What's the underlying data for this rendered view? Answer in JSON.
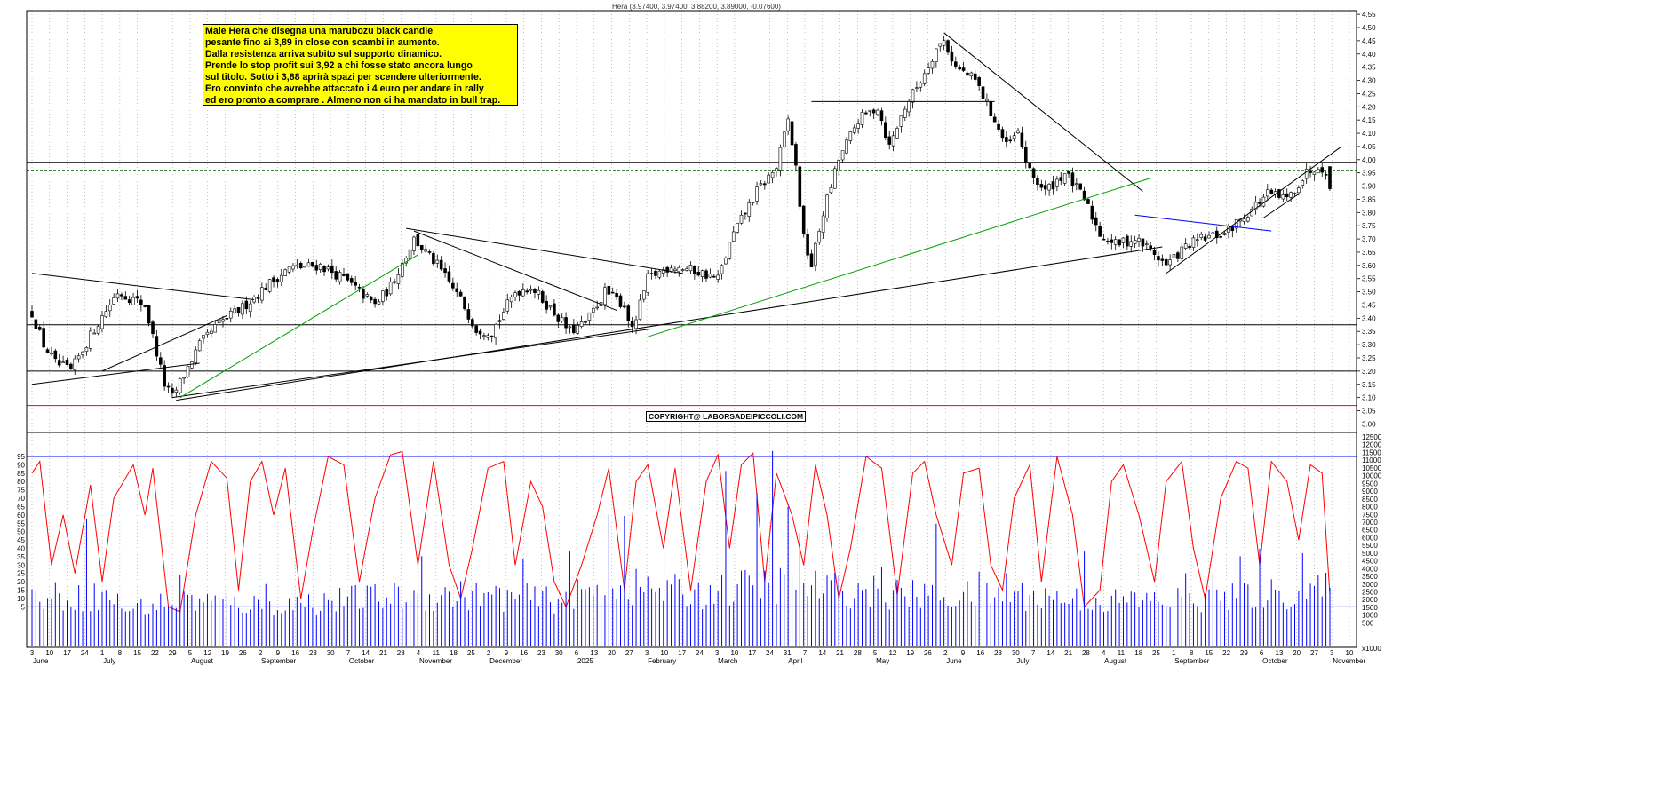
{
  "header": {
    "text": "Hera (3.97400, 3.97400, 3.88200, 3.89000, -0.07600)"
  },
  "annotation": {
    "lines": [
      "Male Hera che disegna una marubozu black candle",
      "pesante fino ai 3,89 in close con scambi in aumento.",
      "Dalla resistenza arriva subito sul supporto dinamico.",
      "Prende lo stop profit sui 3,92 a chi fosse stato ancora lungo",
      "sul titolo. Sotto i 3,88 aprirà spazi per scendere ulteriormente.",
      "Ero convinto che avrebbe attaccato i 4 euro per andare in rally",
      "ed ero pronto a comprare . Almeno non ci ha mandato in bull trap."
    ]
  },
  "copyright": "COPYRIGHT@ LABORSADEIPICCOLI.COM",
  "colors": {
    "up": "#ffffff",
    "down": "#000000",
    "oscillator": "#ff0000",
    "volume": "#0000ff",
    "trend_green": "#00a000",
    "trend_blue": "#0000ff",
    "support_red": "#ff0000"
  },
  "chart_data": {
    "type": "candlestick",
    "symbol": "Hera",
    "last_bar": {
      "open": 3.974,
      "high": 3.974,
      "low": 3.882,
      "close": 3.89,
      "change": -0.076
    },
    "price_axis": {
      "ylim": [
        2.98,
        4.57
      ],
      "ticks": [
        "4.55",
        "4.50",
        "4.45",
        "4.40",
        "4.35",
        "4.30",
        "4.25",
        "4.20",
        "4.15",
        "4.10",
        "4.05",
        "4.00",
        "3.95",
        "3.90",
        "3.85",
        "3.80",
        "3.75",
        "3.70",
        "3.65",
        "3.60",
        "3.55",
        "3.50",
        "3.45",
        "3.40",
        "3.35",
        "3.30",
        "3.25",
        "3.20",
        "3.15",
        "3.10",
        "3.05",
        "3.00"
      ]
    },
    "oscillator_axis": {
      "ylim": [
        0,
        100
      ],
      "ticks": [
        "95",
        "90",
        "85",
        "80",
        "75",
        "70",
        "65",
        "60",
        "55",
        "50",
        "45",
        "40",
        "35",
        "30",
        "25",
        "20",
        "15",
        "10",
        "5"
      ]
    },
    "volume_axis": {
      "ylim": [
        0,
        12600
      ],
      "ticks": [
        "12500",
        "12000",
        "11500",
        "11000",
        "10500",
        "10000",
        "9500",
        "9000",
        "8500",
        "8000",
        "7500",
        "7000",
        "6500",
        "6000",
        "5500",
        "5000",
        "4500",
        "4000",
        "3500",
        "3000",
        "2500",
        "2000",
        "1500",
        "1000",
        "500"
      ],
      "unit_label": "x1000"
    },
    "day_ticks": [
      "3",
      "10",
      "17",
      "24",
      "1",
      "8",
      "15",
      "22",
      "29",
      "5",
      "12",
      "19",
      "26",
      "2",
      "9",
      "16",
      "23",
      "30",
      "7",
      "14",
      "21",
      "28",
      "4",
      "11",
      "18",
      "25",
      "2",
      "9",
      "16",
      "23",
      "30",
      "6",
      "13",
      "20",
      "27",
      "3",
      "10",
      "17",
      "24",
      "3",
      "10",
      "17",
      "24",
      "31",
      "7",
      "14",
      "21",
      "28",
      "5",
      "12",
      "19",
      "26",
      "2",
      "9",
      "16",
      "23",
      "30",
      "7",
      "14",
      "21",
      "28",
      "4",
      "11",
      "18",
      "25",
      "1",
      "8",
      "15",
      "22",
      "29",
      "6",
      "13",
      "20",
      "27",
      "3",
      "10"
    ],
    "months": [
      {
        "label": "June",
        "week": 0
      },
      {
        "label": "July",
        "week": 4
      },
      {
        "label": "August",
        "week": 9
      },
      {
        "label": "September",
        "week": 13
      },
      {
        "label": "October",
        "week": 18
      },
      {
        "label": "November",
        "week": 22
      },
      {
        "label": "December",
        "week": 26
      },
      {
        "label": "2025",
        "week": 31
      },
      {
        "label": "February",
        "week": 35
      },
      {
        "label": "March",
        "week": 39
      },
      {
        "label": "April",
        "week": 43
      },
      {
        "label": "May",
        "week": 48
      },
      {
        "label": "June",
        "week": 52
      },
      {
        "label": "July",
        "week": 56
      },
      {
        "label": "August",
        "week": 61
      },
      {
        "label": "September",
        "week": 65
      },
      {
        "label": "October",
        "week": 70
      },
      {
        "label": "November",
        "week": 74
      }
    ],
    "horizontal_levels": [
      {
        "price": 3.99,
        "style": "solid",
        "color": "#000000"
      },
      {
        "price": 3.96,
        "style": "dashed",
        "color": "#006000"
      },
      {
        "price": 3.45,
        "style": "solid",
        "color": "#000000"
      },
      {
        "price": 3.375,
        "style": "solid",
        "color": "#000000"
      },
      {
        "price": 3.2,
        "style": "solid",
        "color": "#000000"
      },
      {
        "price": 3.07,
        "style": "solid",
        "color": "#ff0000"
      }
    ],
    "oscillator_levels": [
      95,
      5
    ],
    "price_anchors": [
      [
        0,
        3.42
      ],
      [
        3,
        3.3
      ],
      [
        6,
        3.23
      ],
      [
        10,
        3.2
      ],
      [
        16,
        3.36
      ],
      [
        22,
        3.5
      ],
      [
        29,
        3.45
      ],
      [
        34,
        3.15
      ],
      [
        36,
        3.1
      ],
      [
        43,
        3.3
      ],
      [
        48,
        3.38
      ],
      [
        54,
        3.44
      ],
      [
        60,
        3.52
      ],
      [
        66,
        3.59
      ],
      [
        74,
        3.6
      ],
      [
        80,
        3.55
      ],
      [
        88,
        3.45
      ],
      [
        92,
        3.52
      ],
      [
        98,
        3.7
      ],
      [
        104,
        3.6
      ],
      [
        110,
        3.47
      ],
      [
        114,
        3.36
      ],
      [
        118,
        3.35
      ],
      [
        124,
        3.5
      ],
      [
        128,
        3.52
      ],
      [
        134,
        3.42
      ],
      [
        138,
        3.35
      ],
      [
        142,
        3.38
      ],
      [
        147,
        3.5
      ],
      [
        152,
        3.45
      ],
      [
        154,
        3.35
      ],
      [
        158,
        3.55
      ],
      [
        164,
        3.6
      ],
      [
        170,
        3.58
      ],
      [
        176,
        3.55
      ],
      [
        180,
        3.72
      ],
      [
        186,
        3.88
      ],
      [
        191,
        3.97
      ],
      [
        194,
        4.15
      ],
      [
        196,
        3.97
      ],
      [
        198,
        3.7
      ],
      [
        200,
        3.6
      ],
      [
        203,
        3.8
      ],
      [
        207,
        4.0
      ],
      [
        212,
        4.15
      ],
      [
        217,
        4.2
      ],
      [
        220,
        4.05
      ],
      [
        224,
        4.2
      ],
      [
        228,
        4.3
      ],
      [
        232,
        4.42
      ],
      [
        234,
        4.45
      ],
      [
        237,
        4.35
      ],
      [
        242,
        4.3
      ],
      [
        246,
        4.18
      ],
      [
        250,
        4.05
      ],
      [
        253,
        4.1
      ],
      [
        256,
        3.95
      ],
      [
        260,
        3.88
      ],
      [
        265,
        3.95
      ],
      [
        270,
        3.85
      ],
      [
        274,
        3.72
      ],
      [
        278,
        3.68
      ],
      [
        283,
        3.7
      ],
      [
        287,
        3.66
      ],
      [
        291,
        3.6
      ],
      [
        296,
        3.67
      ],
      [
        300,
        3.7
      ],
      [
        306,
        3.72
      ],
      [
        312,
        3.8
      ],
      [
        317,
        3.87
      ],
      [
        322,
        3.85
      ],
      [
        327,
        3.95
      ],
      [
        330,
        3.98
      ],
      [
        332,
        3.96
      ],
      [
        333,
        3.89
      ]
    ],
    "oscillator_peaks": [
      [
        0,
        85
      ],
      [
        2,
        92
      ],
      [
        5,
        30
      ],
      [
        8,
        60
      ],
      [
        11,
        25
      ],
      [
        15,
        78
      ],
      [
        18,
        20
      ],
      [
        21,
        70
      ],
      [
        26,
        90
      ],
      [
        29,
        60
      ],
      [
        31,
        88
      ],
      [
        35,
        5
      ],
      [
        38,
        2
      ],
      [
        42,
        60
      ],
      [
        46,
        92
      ],
      [
        50,
        82
      ],
      [
        53,
        15
      ],
      [
        56,
        80
      ],
      [
        59,
        92
      ],
      [
        62,
        60
      ],
      [
        65,
        88
      ],
      [
        69,
        10
      ],
      [
        72,
        50
      ],
      [
        76,
        95
      ],
      [
        80,
        90
      ],
      [
        84,
        20
      ],
      [
        88,
        70
      ],
      [
        92,
        96
      ],
      [
        95,
        98
      ],
      [
        99,
        30
      ],
      [
        103,
        92
      ],
      [
        107,
        30
      ],
      [
        110,
        10
      ],
      [
        113,
        40
      ],
      [
        117,
        88
      ],
      [
        121,
        92
      ],
      [
        124,
        30
      ],
      [
        128,
        80
      ],
      [
        131,
        65
      ],
      [
        134,
        20
      ],
      [
        137,
        5
      ],
      [
        141,
        30
      ],
      [
        145,
        60
      ],
      [
        148,
        88
      ],
      [
        152,
        15
      ],
      [
        155,
        80
      ],
      [
        158,
        90
      ],
      [
        162,
        40
      ],
      [
        165,
        88
      ],
      [
        169,
        15
      ],
      [
        173,
        80
      ],
      [
        176,
        96
      ],
      [
        179,
        40
      ],
      [
        182,
        90
      ],
      [
        185,
        97
      ],
      [
        188,
        20
      ],
      [
        191,
        85
      ],
      [
        195,
        60
      ],
      [
        198,
        30
      ],
      [
        201,
        90
      ],
      [
        204,
        60
      ],
      [
        207,
        10
      ],
      [
        210,
        40
      ],
      [
        214,
        95
      ],
      [
        218,
        88
      ],
      [
        222,
        12
      ],
      [
        226,
        85
      ],
      [
        229,
        92
      ],
      [
        232,
        60
      ],
      [
        236,
        30
      ],
      [
        239,
        85
      ],
      [
        243,
        88
      ],
      [
        246,
        30
      ],
      [
        249,
        15
      ],
      [
        252,
        70
      ],
      [
        256,
        90
      ],
      [
        259,
        20
      ],
      [
        263,
        95
      ],
      [
        267,
        60
      ],
      [
        270,
        5
      ],
      [
        274,
        15
      ],
      [
        277,
        80
      ],
      [
        280,
        90
      ],
      [
        284,
        60
      ],
      [
        288,
        20
      ],
      [
        291,
        80
      ],
      [
        295,
        92
      ],
      [
        298,
        40
      ],
      [
        301,
        10
      ],
      [
        305,
        70
      ],
      [
        309,
        92
      ],
      [
        312,
        88
      ],
      [
        315,
        30
      ],
      [
        318,
        92
      ],
      [
        322,
        80
      ],
      [
        325,
        45
      ],
      [
        328,
        90
      ],
      [
        331,
        85
      ],
      [
        333,
        12
      ]
    ],
    "volume_profile": [
      [
        0,
        2200
      ],
      [
        20,
        2200
      ],
      [
        24,
        1400
      ],
      [
        40,
        2000
      ],
      [
        60,
        1600
      ],
      [
        85,
        2100
      ],
      [
        110,
        2300
      ],
      [
        135,
        2000
      ],
      [
        150,
        2900
      ],
      [
        170,
        2400
      ],
      [
        190,
        3000
      ],
      [
        210,
        2600
      ],
      [
        230,
        2200
      ],
      [
        255,
        2300
      ],
      [
        275,
        1900
      ],
      [
        300,
        2000
      ],
      [
        333,
        2600
      ]
    ],
    "volume_spikes": [
      [
        14,
        7200
      ],
      [
        38,
        3600
      ],
      [
        60,
        3000
      ],
      [
        100,
        4800
      ],
      [
        126,
        4600
      ],
      [
        138,
        5100
      ],
      [
        148,
        7500
      ],
      [
        152,
        7400
      ],
      [
        178,
        10300
      ],
      [
        186,
        8900
      ],
      [
        190,
        11600
      ],
      [
        194,
        8000
      ],
      [
        197,
        6300
      ],
      [
        218,
        4100
      ],
      [
        232,
        6900
      ],
      [
        243,
        3800
      ],
      [
        250,
        3700
      ],
      [
        270,
        5100
      ],
      [
        296,
        3700
      ],
      [
        303,
        3600
      ],
      [
        310,
        4800
      ],
      [
        315,
        5300
      ],
      [
        326,
        5000
      ]
    ],
    "trendlines": [
      {
        "from": [
          0,
          3.57
        ],
        "to": [
          57,
          3.47
        ],
        "color": "#000000"
      },
      {
        "from": [
          0,
          3.15
        ],
        "to": [
          43,
          3.23
        ],
        "color": "#000000"
      },
      {
        "from": [
          18,
          3.2
        ],
        "to": [
          50,
          3.41
        ],
        "color": "#000000"
      },
      {
        "from": [
          36,
          3.1
        ],
        "to": [
          159,
          3.36
        ],
        "color": "#000000"
      },
      {
        "from": [
          37,
          3.09
        ],
        "to": [
          290,
          3.67
        ],
        "color": "#000000"
      },
      {
        "from": [
          38,
          3.1
        ],
        "to": [
          99,
          3.64
        ],
        "color": "#00a000"
      },
      {
        "from": [
          158,
          3.33
        ],
        "to": [
          287,
          3.93
        ],
        "color": "#00a000"
      },
      {
        "from": [
          96,
          3.74
        ],
        "to": [
          167,
          3.57
        ],
        "color": "#000000"
      },
      {
        "from": [
          98,
          3.73
        ],
        "to": [
          150,
          3.43
        ],
        "color": "#000000"
      },
      {
        "from": [
          200,
          4.22
        ],
        "to": [
          247,
          4.22
        ],
        "color": "#000000"
      },
      {
        "from": [
          234,
          4.48
        ],
        "to": [
          285,
          3.88
        ],
        "color": "#000000"
      },
      {
        "from": [
          283,
          3.79
        ],
        "to": [
          318,
          3.73
        ],
        "color": "#0000ff"
      },
      {
        "from": [
          291,
          3.57
        ],
        "to": [
          336,
          4.05
        ],
        "color": "#000000"
      },
      {
        "from": [
          316,
          3.78
        ],
        "to": [
          325,
          3.87
        ],
        "color": "#000000"
      }
    ]
  }
}
